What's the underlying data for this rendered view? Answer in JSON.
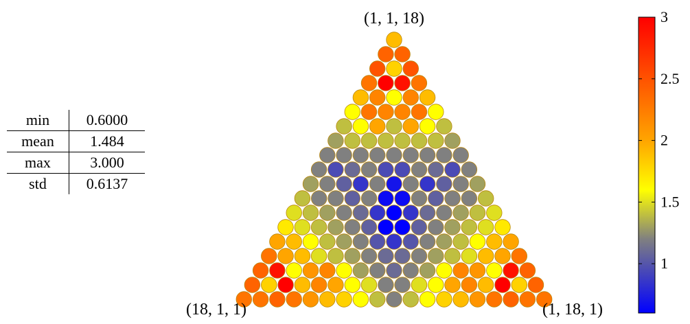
{
  "stats_table": {
    "rows": [
      {
        "label": "min",
        "value": "0.6000"
      },
      {
        "label": "mean",
        "value": "1.484"
      },
      {
        "label": "max",
        "value": "3.000"
      },
      {
        "label": "std",
        "value": "0.6137"
      }
    ]
  },
  "chart_data": {
    "type": "heatmap",
    "layout": "ternary triangular grid",
    "vertex_labels": {
      "top": "(1, 1, 18)",
      "bottom_left": "(18, 1, 1)",
      "bottom_right": "(1, 18, 1)"
    },
    "colorbar": {
      "min": 0.6,
      "max": 3.0,
      "ticks": [
        1,
        1.5,
        2,
        2.5,
        3
      ],
      "tick_labels": [
        "1",
        "1.5",
        "2",
        "2.5",
        "3"
      ],
      "colormap": [
        {
          "v": 0.6,
          "color": "#0000ff"
        },
        {
          "v": 1.2,
          "color": "#808080"
        },
        {
          "v": 1.6,
          "color": "#ffff00"
        },
        {
          "v": 2.0,
          "color": "#ffa500"
        },
        {
          "v": 3.0,
          "color": "#ff0000"
        }
      ]
    },
    "rows": [
      [
        1.9
      ],
      [
        2.4,
        2.4
      ],
      [
        2.5,
        1.8,
        2.5
      ],
      [
        2.3,
        3.0,
        2.9,
        2.3
      ],
      [
        1.9,
        2.2,
        1.6,
        2.2,
        1.9
      ],
      [
        1.6,
        2.3,
        2.2,
        2.2,
        2.3,
        1.6
      ],
      [
        1.4,
        1.6,
        2.0,
        1.4,
        2.0,
        1.6,
        1.4
      ],
      [
        1.3,
        1.4,
        1.4,
        1.4,
        1.4,
        1.4,
        1.4,
        1.3
      ],
      [
        1.2,
        1.2,
        1.2,
        1.2,
        1.2,
        1.2,
        1.2,
        1.2,
        1.2
      ],
      [
        1.2,
        0.95,
        1.1,
        1.2,
        0.95,
        0.95,
        1.2,
        1.1,
        0.95,
        1.2
      ],
      [
        1.3,
        1.2,
        1.05,
        0.85,
        1.2,
        0.7,
        1.2,
        0.85,
        1.05,
        1.2,
        1.3
      ],
      [
        1.4,
        1.2,
        1.2,
        1.05,
        1.2,
        0.65,
        0.65,
        1.2,
        1.05,
        1.2,
        1.2,
        1.4
      ],
      [
        1.5,
        1.4,
        1.3,
        1.2,
        1.1,
        0.85,
        0.6,
        0.85,
        1.1,
        1.2,
        1.3,
        1.4,
        1.5
      ],
      [
        1.7,
        1.5,
        1.4,
        1.3,
        1.2,
        1.05,
        0.6,
        0.6,
        1.05,
        1.2,
        1.3,
        1.4,
        1.5,
        1.7
      ],
      [
        2.0,
        1.9,
        1.6,
        1.4,
        1.3,
        1.2,
        1.0,
        0.85,
        1.0,
        1.2,
        1.3,
        1.4,
        1.6,
        1.9,
        2.0
      ],
      [
        2.3,
        2.0,
        1.9,
        1.5,
        1.4,
        1.3,
        1.2,
        1.1,
        1.1,
        1.2,
        1.3,
        1.4,
        1.5,
        1.9,
        2.0,
        2.3
      ],
      [
        2.4,
        2.9,
        1.6,
        2.1,
        2.2,
        1.6,
        1.3,
        1.2,
        1.1,
        1.2,
        1.3,
        1.6,
        2.2,
        2.1,
        1.6,
        2.9,
        2.4
      ],
      [
        2.4,
        1.8,
        3.0,
        1.9,
        2.2,
        2.0,
        1.6,
        1.5,
        1.2,
        1.2,
        1.5,
        1.6,
        2.0,
        2.2,
        1.9,
        3.0,
        1.8,
        2.4
      ],
      [
        2.3,
        2.3,
        2.4,
        2.3,
        2.1,
        1.9,
        1.8,
        1.6,
        1.4,
        1.2,
        1.4,
        1.6,
        1.8,
        1.9,
        2.1,
        2.3,
        2.4,
        2.3,
        2.3
      ]
    ]
  }
}
